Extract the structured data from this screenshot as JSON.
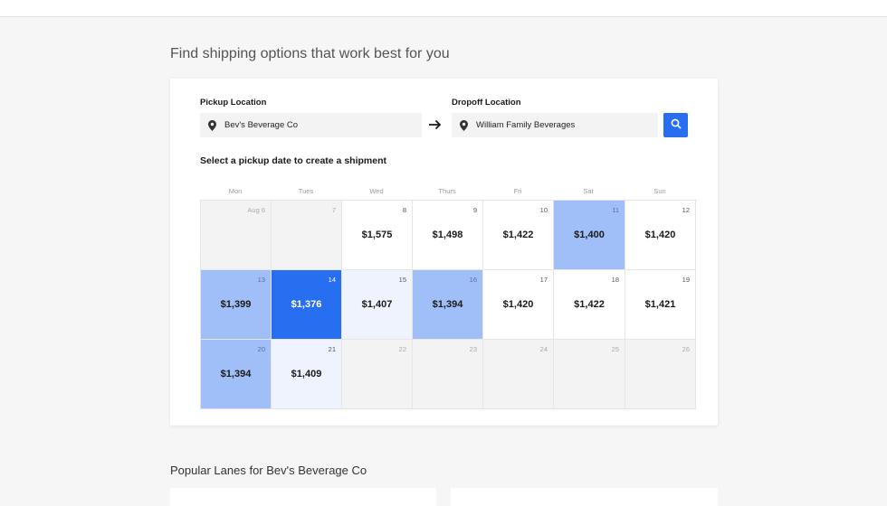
{
  "page": {
    "heading": "Find shipping options that work best for you"
  },
  "pickup": {
    "label": "Pickup Location",
    "value": "Bev's Beverage Co"
  },
  "dropoff": {
    "label": "Dropoff Location",
    "value": "William Family Beverages"
  },
  "calendar": {
    "title": "Select a pickup date to create a shipment",
    "weekdays": [
      "Mon",
      "Tues",
      "Wed",
      "Thurs",
      "Fri",
      "Sat",
      "Sun"
    ],
    "cells": [
      {
        "day": "Aug 6",
        "price": "",
        "state": "past"
      },
      {
        "day": "7",
        "price": "",
        "state": "past"
      },
      {
        "day": "8",
        "price": "$1,575",
        "state": "normal"
      },
      {
        "day": "9",
        "price": "$1,498",
        "state": "normal"
      },
      {
        "day": "10",
        "price": "$1,422",
        "state": "normal"
      },
      {
        "day": "11",
        "price": "$1,400",
        "state": "mid"
      },
      {
        "day": "12",
        "price": "$1,420",
        "state": "normal"
      },
      {
        "day": "13",
        "price": "$1,399",
        "state": "mid"
      },
      {
        "day": "14",
        "price": "$1,376",
        "state": "dark"
      },
      {
        "day": "15",
        "price": "$1,407",
        "state": "light"
      },
      {
        "day": "16",
        "price": "$1,394",
        "state": "mid"
      },
      {
        "day": "17",
        "price": "$1,420",
        "state": "normal"
      },
      {
        "day": "18",
        "price": "$1,422",
        "state": "normal"
      },
      {
        "day": "19",
        "price": "$1,421",
        "state": "normal"
      },
      {
        "day": "20",
        "price": "$1,394",
        "state": "mid"
      },
      {
        "day": "21",
        "price": "$1,409",
        "state": "light"
      },
      {
        "day": "22",
        "price": "",
        "state": "past"
      },
      {
        "day": "23",
        "price": "",
        "state": "past"
      },
      {
        "day": "24",
        "price": "",
        "state": "past"
      },
      {
        "day": "25",
        "price": "",
        "state": "past"
      },
      {
        "day": "26",
        "price": "",
        "state": "past"
      }
    ]
  },
  "lanes": {
    "heading": "Popular Lanes for Bev's Beverage Co"
  },
  "colors": {
    "accent": "#276ef1",
    "mid": "#a0bff8",
    "light": "#eef3fe",
    "past": "#f3f3f3"
  },
  "icons": {
    "pin": "map-pin-icon",
    "arrow": "arrow-right-icon",
    "search": "search-icon"
  }
}
